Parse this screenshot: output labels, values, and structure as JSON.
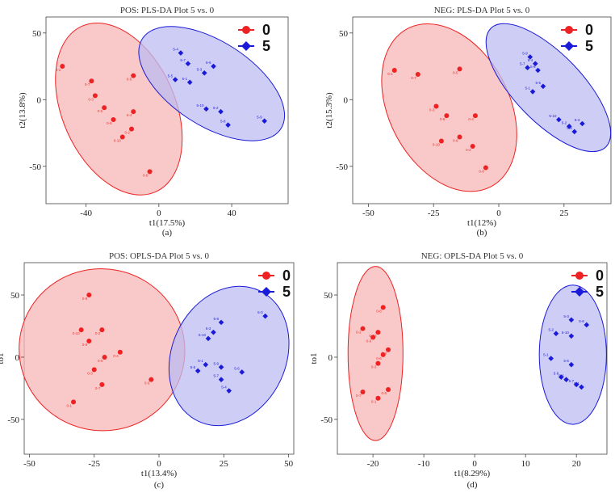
{
  "figure": {
    "subcaptions": [
      "(a)",
      "(b)",
      "(c)",
      "(d)"
    ]
  },
  "chart_data": [
    {
      "type": "scatter",
      "title": "POS: PLS-DA Plot 5 vs. 0",
      "xlabel": "t1(17.5%)",
      "ylabel": "t2(13.8%)",
      "xlim": [
        -62,
        71
      ],
      "ylim": [
        -78,
        62
      ],
      "xticks": [
        -40,
        0,
        40
      ],
      "yticks": [
        50,
        0,
        -50
      ],
      "legend": [
        "0",
        "5"
      ],
      "colors": {
        "g0": "#ee2222",
        "g5": "#1a1ad8",
        "fill0": "#f7b5b5",
        "fill5": "#bcbcf2"
      },
      "ellipse0": {
        "cx": -22,
        "cy": -7,
        "rx": 31,
        "ry": 68,
        "angle": -24
      },
      "ellipse5": {
        "cx": 29,
        "cy": 12,
        "rx": 23,
        "ry": 62,
        "angle": -57
      },
      "series": [
        {
          "name": "0",
          "points": [
            {
              "label": "0-1",
              "x": -53,
              "y": 25
            },
            {
              "label": "0-7",
              "x": -37,
              "y": 14
            },
            {
              "label": "0-3",
              "x": -35,
              "y": 3
            },
            {
              "label": "0-6",
              "x": -30,
              "y": -6
            },
            {
              "label": "0-5",
              "x": -14,
              "y": 18
            },
            {
              "label": "0-4",
              "x": -14,
              "y": -9
            },
            {
              "label": "0-9",
              "x": -25,
              "y": -15
            },
            {
              "label": "0-2",
              "x": -15,
              "y": -22
            },
            {
              "label": "0-10",
              "x": -20,
              "y": -28
            },
            {
              "label": "0-8",
              "x": -5,
              "y": -54
            }
          ]
        },
        {
          "name": "5",
          "points": [
            {
              "label": "5-4",
              "x": 12,
              "y": 35
            },
            {
              "label": "5-7",
              "x": 16,
              "y": 27
            },
            {
              "label": "5-6",
              "x": 30,
              "y": 25
            },
            {
              "label": "5-3",
              "x": 25,
              "y": 20
            },
            {
              "label": "5-5",
              "x": 9,
              "y": 15
            },
            {
              "label": "5-1",
              "x": 17,
              "y": 13
            },
            {
              "label": "5-10",
              "x": 26,
              "y": -7
            },
            {
              "label": "5-2",
              "x": 34,
              "y": -9
            },
            {
              "label": "5-8",
              "x": 38,
              "y": -19
            },
            {
              "label": "5-9",
              "x": 58,
              "y": -16
            }
          ]
        }
      ]
    },
    {
      "type": "scatter",
      "title": "NEG: PLS-DA Plot 5 vs. 0",
      "xlabel": "t1(12%)",
      "ylabel": "t2(15.3%)",
      "xlim": [
        -56,
        43
      ],
      "ylim": [
        -78,
        62
      ],
      "xticks": [
        -50,
        -25,
        0,
        25
      ],
      "yticks": [
        50,
        0,
        -50
      ],
      "legend": [
        "0",
        "5"
      ],
      "colors": {
        "g0": "#ee2222",
        "g5": "#1a1ad8",
        "fill0": "#f7b5b5",
        "fill5": "#bcbcf2"
      },
      "ellipse0": {
        "cx": -19,
        "cy": -6,
        "rx": 23,
        "ry": 67,
        "angle": -28
      },
      "ellipse5": {
        "cx": 19,
        "cy": 9,
        "rx": 13,
        "ry": 62,
        "angle": -44
      },
      "series": [
        {
          "name": "0",
          "points": [
            {
              "label": "0-1",
              "x": -40,
              "y": 22
            },
            {
              "label": "0-7",
              "x": -31,
              "y": 19
            },
            {
              "label": "0-5",
              "x": -15,
              "y": 23
            },
            {
              "label": "0-3",
              "x": -24,
              "y": -5
            },
            {
              "label": "0-6",
              "x": -20,
              "y": -12
            },
            {
              "label": "0-4",
              "x": -9,
              "y": -12
            },
            {
              "label": "0-10",
              "x": -22,
              "y": -31
            },
            {
              "label": "0-9",
              "x": -15,
              "y": -28
            },
            {
              "label": "0-2",
              "x": -10,
              "y": -35
            },
            {
              "label": "0-8",
              "x": -5,
              "y": -51
            }
          ]
        },
        {
          "name": "5",
          "points": [
            {
              "label": "5-9",
              "x": 12,
              "y": 32
            },
            {
              "label": "5-4",
              "x": 14,
              "y": 27
            },
            {
              "label": "5-7",
              "x": 11,
              "y": 24
            },
            {
              "label": "5-6",
              "x": 15,
              "y": 22
            },
            {
              "label": "5-1",
              "x": 13,
              "y": 6
            },
            {
              "label": "5-5",
              "x": 17,
              "y": 10
            },
            {
              "label": "5-10",
              "x": 23,
              "y": -15
            },
            {
              "label": "5-2",
              "x": 27,
              "y": -20
            },
            {
              "label": "5-8",
              "x": 29,
              "y": -24
            },
            {
              "label": "5-3",
              "x": 32,
              "y": -18
            }
          ]
        }
      ]
    },
    {
      "type": "scatter",
      "title": "POS: OPLS-DA Plot 5 vs. 0",
      "xlabel": "t1(13.4%)",
      "ylabel": "to1",
      "xlim": [
        -52,
        52
      ],
      "ylim": [
        -78,
        76
      ],
      "xticks": [
        -50,
        -25,
        0,
        25,
        50
      ],
      "yticks": [
        50,
        0,
        -50
      ],
      "legend": [
        "0",
        "5"
      ],
      "colors": {
        "g0": "#ee2222",
        "g5": "#1a1ad8",
        "fill0": "#f7b5b5",
        "fill5": "#bcbcf2"
      },
      "ellipse0": {
        "cx": -22,
        "cy": 6,
        "rx": 32,
        "ry": 65,
        "angle": 12
      },
      "ellipse5": {
        "cx": 27,
        "cy": 1,
        "rx": 22,
        "ry": 58,
        "angle": 25
      },
      "series": [
        {
          "name": "0",
          "points": [
            {
              "label": "0-8",
              "x": -27,
              "y": 50
            },
            {
              "label": "0-10",
              "x": -30,
              "y": 22
            },
            {
              "label": "0-2",
              "x": -22,
              "y": 22
            },
            {
              "label": "0-9",
              "x": -27,
              "y": 13
            },
            {
              "label": "0-4",
              "x": -15,
              "y": 4
            },
            {
              "label": "0-6",
              "x": -21,
              "y": 0
            },
            {
              "label": "0-3",
              "x": -25,
              "y": -10
            },
            {
              "label": "0-7",
              "x": -22,
              "y": -22
            },
            {
              "label": "0-5",
              "x": -3,
              "y": -18
            },
            {
              "label": "0-1",
              "x": -33,
              "y": -36
            }
          ]
        },
        {
          "name": "5",
          "points": [
            {
              "label": "5-3",
              "x": 41,
              "y": 33
            },
            {
              "label": "5-8",
              "x": 24,
              "y": 28
            },
            {
              "label": "5-2",
              "x": 21,
              "y": 20
            },
            {
              "label": "5-10",
              "x": 19,
              "y": 15
            },
            {
              "label": "5-1",
              "x": 18,
              "y": -6
            },
            {
              "label": "5-9",
              "x": 24,
              "y": -8
            },
            {
              "label": "5-5",
              "x": 15,
              "y": -11
            },
            {
              "label": "5-6",
              "x": 32,
              "y": -12
            },
            {
              "label": "5-7",
              "x": 24,
              "y": -18
            },
            {
              "label": "5-4",
              "x": 27,
              "y": -27
            }
          ]
        }
      ]
    },
    {
      "type": "scatter",
      "title": "NEG: OPLS-DA Plot 5 vs. 0",
      "xlabel": "t1(8.29%)",
      "ylabel": "to1",
      "xlim": [
        -27,
        26
      ],
      "ylim": [
        -78,
        76
      ],
      "xticks": [
        -20,
        -10,
        0,
        10,
        20
      ],
      "yticks": [
        50,
        0,
        -50
      ],
      "legend": [
        "0",
        "5"
      ],
      "colors": {
        "g0": "#ee2222",
        "g5": "#1a1ad8",
        "fill0": "#f7b5b5",
        "fill5": "#bcbcf2"
      },
      "ellipse0": {
        "cx": -19.5,
        "cy": 3,
        "rx": 5.4,
        "ry": 70,
        "angle": 0
      },
      "ellipse5": {
        "cx": 19.3,
        "cy": 2,
        "rx": 6.6,
        "ry": 56,
        "angle": 0
      },
      "series": [
        {
          "name": "0",
          "points": [
            {
              "label": "0-8",
              "x": -18,
              "y": 40
            },
            {
              "label": "0-2",
              "x": -22,
              "y": 23
            },
            {
              "label": "0-10",
              "x": -19,
              "y": 20
            },
            {
              "label": "0-9",
              "x": -20,
              "y": 16
            },
            {
              "label": "0-4",
              "x": -17,
              "y": 6
            },
            {
              "label": "0-6",
              "x": -18,
              "y": 2
            },
            {
              "label": "0-3",
              "x": -19,
              "y": -5
            },
            {
              "label": "0-7",
              "x": -22,
              "y": -28
            },
            {
              "label": "0-5",
              "x": -17,
              "y": -26
            },
            {
              "label": "0-1",
              "x": -19,
              "y": -33
            }
          ]
        },
        {
          "name": "5",
          "points": [
            {
              "label": "5-3",
              "x": 19,
              "y": 30
            },
            {
              "label": "5-2",
              "x": 16,
              "y": 19
            },
            {
              "label": "5-8",
              "x": 22,
              "y": 26
            },
            {
              "label": "5-10",
              "x": 19,
              "y": 17
            },
            {
              "label": "5-1",
              "x": 15,
              "y": -1
            },
            {
              "label": "5-5",
              "x": 19,
              "y": -6
            },
            {
              "label": "5-9",
              "x": 17,
              "y": -16
            },
            {
              "label": "5-6",
              "x": 18,
              "y": -18
            },
            {
              "label": "5-7",
              "x": 20,
              "y": -22
            },
            {
              "label": "5-4",
              "x": 21,
              "y": -24
            }
          ]
        }
      ]
    }
  ]
}
